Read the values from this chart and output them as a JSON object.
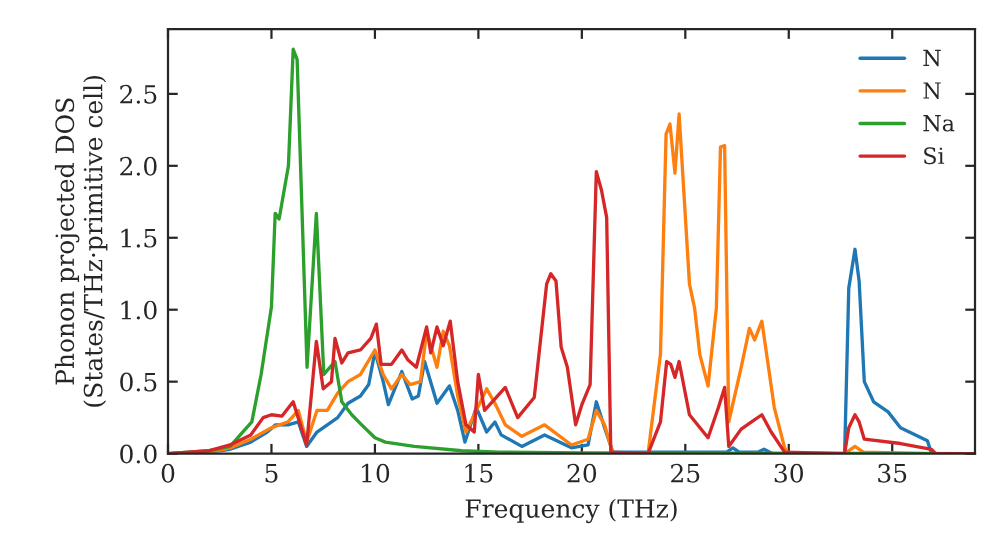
{
  "chart_data": {
    "type": "line",
    "xlabel": "Frequency (THz)",
    "ylabel": "Phonon projected DOS\n(States/THz·primitive cell)",
    "xlim": [
      0,
      39
    ],
    "xticks": [
      0,
      5,
      10,
      15,
      20,
      25,
      30,
      35
    ],
    "ylim": [
      0,
      2.95
    ],
    "yticks": [
      {
        "value": 0,
        "label": "0.0"
      },
      {
        "value": 0.5,
        "label": "0.5"
      },
      {
        "value": 1,
        "label": "1.0"
      },
      {
        "value": 1.5,
        "label": "1.5"
      },
      {
        "value": 2,
        "label": "2.0"
      },
      {
        "value": 2.5,
        "label": "2.5"
      }
    ],
    "grid": false,
    "legend": "top right",
    "marker": "none",
    "line_style": "solid",
    "series": [
      {
        "name": "N",
        "color": "#1f77b4",
        "x": [
          0,
          2,
          3,
          4,
          4.8,
          5.2,
          5.8,
          6.3,
          6.7,
          7.2,
          7.7,
          8.2,
          8.7,
          9.3,
          9.7,
          10.0,
          10.4,
          10.65,
          11.3,
          11.8,
          12.1,
          12.4,
          13.0,
          13.6,
          14.0,
          14.35,
          14.9,
          15.4,
          15.8,
          16.1,
          17.1,
          18.2,
          19.5,
          20.3,
          20.7,
          21.1,
          21.5,
          27.0,
          27.3,
          27.6,
          28.5,
          28.8,
          29.2,
          32.7,
          32.9,
          33.2,
          33.4,
          33.65,
          34.1,
          34.8,
          35.4,
          36.7,
          36.9,
          39
        ],
        "values": [
          0,
          0.01,
          0.03,
          0.08,
          0.15,
          0.2,
          0.2,
          0.22,
          0.05,
          0.15,
          0.2,
          0.25,
          0.35,
          0.4,
          0.48,
          0.71,
          0.5,
          0.34,
          0.57,
          0.38,
          0.4,
          0.64,
          0.35,
          0.47,
          0.3,
          0.08,
          0.32,
          0.15,
          0.22,
          0.13,
          0.05,
          0.13,
          0.04,
          0.06,
          0.36,
          0.18,
          0.01,
          0.01,
          0.04,
          0.01,
          0.01,
          0.03,
          0.0,
          0,
          1.15,
          1.42,
          1.2,
          0.5,
          0.36,
          0.29,
          0.18,
          0.09,
          0,
          0
        ]
      },
      {
        "name": "N",
        "color": "#ff7f0e",
        "x": [
          0,
          2,
          3,
          4,
          5,
          5.8,
          6.3,
          6.7,
          7.2,
          7.7,
          8.2,
          8.7,
          9.3,
          10.0,
          10.4,
          10.8,
          11.3,
          11.7,
          12.2,
          12.5,
          13.0,
          13.3,
          13.6,
          14.0,
          14.4,
          14.9,
          15.4,
          15.8,
          16.3,
          17.1,
          18.2,
          19.5,
          20.3,
          20.7,
          21.1,
          21.5,
          23.2,
          23.8,
          24.07,
          24.26,
          24.5,
          24.7,
          25.2,
          25.45,
          25.7,
          26.1,
          26.5,
          26.7,
          26.9,
          27.1,
          27.7,
          28.1,
          28.35,
          28.7,
          29.3,
          29.8,
          30.0,
          32.7,
          33.2,
          33.6,
          36.9,
          39
        ],
        "values": [
          0,
          0.01,
          0.04,
          0.1,
          0.18,
          0.22,
          0.3,
          0.08,
          0.3,
          0.3,
          0.42,
          0.5,
          0.55,
          0.72,
          0.55,
          0.45,
          0.55,
          0.48,
          0.5,
          0.85,
          0.6,
          0.85,
          0.75,
          0.4,
          0.15,
          0.3,
          0.45,
          0.35,
          0.2,
          0.12,
          0.2,
          0.06,
          0.1,
          0.3,
          0.2,
          0,
          0,
          0.69,
          2.22,
          2.29,
          1.95,
          2.36,
          1.18,
          1.01,
          0.69,
          0.47,
          1.01,
          2.13,
          2.14,
          0.22,
          0.6,
          0.87,
          0.79,
          0.92,
          0.32,
          0.04,
          0,
          0,
          0.05,
          0.01,
          0,
          0
        ]
      },
      {
        "name": "Na",
        "color": "#2ca02c",
        "x": [
          0,
          2,
          3,
          4.05,
          4.5,
          5.0,
          5.18,
          5.37,
          5.82,
          6.05,
          6.24,
          6.72,
          7.17,
          7.53,
          8.07,
          8.4,
          8.88,
          9.36,
          10.0,
          10.5,
          11.9,
          14.2,
          16,
          20,
          39
        ],
        "values": [
          0,
          0.02,
          0.05,
          0.22,
          0.55,
          1.02,
          1.67,
          1.63,
          2.0,
          2.81,
          2.74,
          0.6,
          1.67,
          0.55,
          0.64,
          0.36,
          0.27,
          0.2,
          0.11,
          0.08,
          0.05,
          0.02,
          0.01,
          0.005,
          0
        ]
      },
      {
        "name": "Si",
        "color": "#d62728",
        "x": [
          0,
          2,
          3,
          4,
          4.6,
          5.0,
          5.5,
          6.05,
          6.7,
          7.17,
          7.5,
          7.9,
          8.07,
          8.4,
          8.7,
          9.3,
          9.8,
          10.07,
          10.3,
          10.8,
          11.3,
          11.6,
          12.0,
          12.5,
          12.7,
          13.0,
          13.3,
          13.64,
          14.0,
          14.4,
          14.8,
          15.0,
          15.3,
          15.8,
          16.3,
          16.9,
          17.7,
          18.3,
          18.5,
          18.75,
          19.0,
          19.3,
          19.7,
          20.0,
          20.4,
          20.7,
          20.95,
          21.2,
          21.4,
          23.2,
          23.8,
          24.1,
          24.3,
          24.5,
          24.7,
          25.2,
          26.1,
          26.6,
          26.9,
          27.1,
          27.7,
          28.2,
          28.7,
          29.15,
          29.8,
          32.7,
          32.9,
          33.2,
          33.4,
          33.65,
          35.4,
          36.9,
          37.1,
          39
        ],
        "values": [
          0,
          0.02,
          0.06,
          0.13,
          0.25,
          0.27,
          0.26,
          0.36,
          0.06,
          0.78,
          0.45,
          0.5,
          0.8,
          0.63,
          0.7,
          0.72,
          0.8,
          0.9,
          0.62,
          0.62,
          0.72,
          0.65,
          0.6,
          0.88,
          0.7,
          0.88,
          0.75,
          0.92,
          0.5,
          0.2,
          0.15,
          0.55,
          0.3,
          0.38,
          0.46,
          0.25,
          0.39,
          1.18,
          1.25,
          1.2,
          0.74,
          0.6,
          0.2,
          0.34,
          0.48,
          1.96,
          1.83,
          1.64,
          0.01,
          0,
          0.22,
          0.64,
          0.62,
          0.53,
          0.64,
          0.27,
          0.11,
          0.32,
          0.46,
          0.05,
          0.17,
          0.22,
          0.27,
          0.15,
          0.01,
          0,
          0.18,
          0.27,
          0.22,
          0.1,
          0.07,
          0.03,
          0,
          0
        ]
      }
    ]
  }
}
